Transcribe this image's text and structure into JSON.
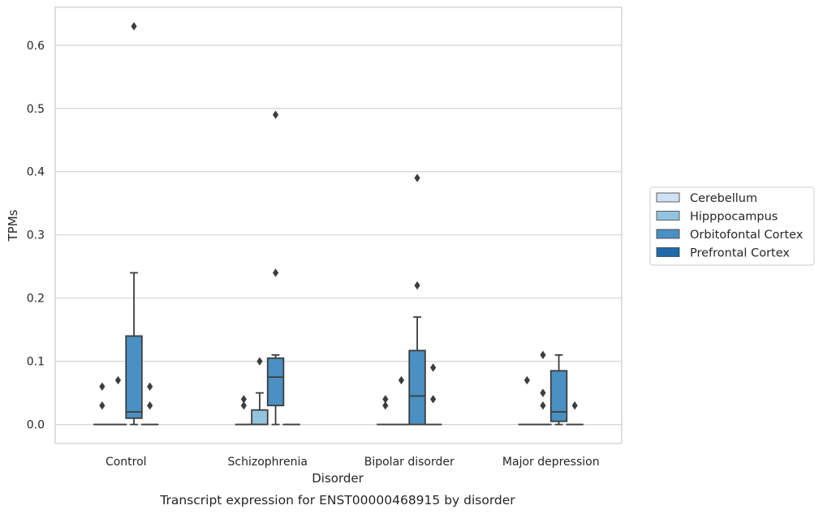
{
  "chart_data": {
    "type": "box",
    "title": "",
    "caption": "Transcript expression for ENST00000468915 by disorder",
    "xlabel": "Disorder",
    "ylabel": "TPMs",
    "ylim": [
      -0.03,
      0.66
    ],
    "yticks": [
      0.0,
      0.1,
      0.2,
      0.3,
      0.4,
      0.5,
      0.6
    ],
    "ytick_labels": [
      "0.0",
      "0.1",
      "0.2",
      "0.3",
      "0.4",
      "0.5",
      "0.6"
    ],
    "grid": "horizontal",
    "legend_position": "right",
    "categories": [
      "Control",
      "Schizophrenia",
      "Bipolar disorder",
      "Major depression"
    ],
    "series": [
      {
        "name": "Cerebellum",
        "color": "#cfe1f2",
        "boxes": [
          {
            "q1": 0,
            "median": 0,
            "q3": 0,
            "whisker_low": 0,
            "whisker_high": 0,
            "outliers": [
              0.03,
              0.06
            ]
          },
          {
            "q1": 0,
            "median": 0,
            "q3": 0,
            "whisker_low": 0,
            "whisker_high": 0,
            "outliers": [
              0.03,
              0.04
            ]
          },
          {
            "q1": 0,
            "median": 0,
            "q3": 0,
            "whisker_low": 0,
            "whisker_high": 0,
            "outliers": [
              0.03,
              0.04
            ]
          },
          {
            "q1": 0,
            "median": 0,
            "q3": 0,
            "whisker_low": 0,
            "whisker_high": 0,
            "outliers": [
              0.07
            ]
          }
        ]
      },
      {
        "name": "Hipppocampus",
        "color": "#93c4de",
        "boxes": [
          {
            "q1": 0,
            "median": 0,
            "q3": 0,
            "whisker_low": 0,
            "whisker_high": 0,
            "outliers": [
              0.07
            ]
          },
          {
            "q1": 0,
            "median": 0,
            "q3": 0.023,
            "whisker_low": 0,
            "whisker_high": 0.05,
            "outliers": [
              0.1
            ]
          },
          {
            "q1": 0,
            "median": 0,
            "q3": 0,
            "whisker_low": 0,
            "whisker_high": 0,
            "outliers": [
              0.07
            ]
          },
          {
            "q1": 0,
            "median": 0,
            "q3": 0,
            "whisker_low": 0,
            "whisker_high": 0,
            "outliers": [
              0.03,
              0.05,
              0.11
            ]
          }
        ]
      },
      {
        "name": "Orbitofontal Cortex",
        "color": "#4a90c2",
        "boxes": [
          {
            "q1": 0.01,
            "median": 0.02,
            "q3": 0.14,
            "whisker_low": 0,
            "whisker_high": 0.24,
            "outliers": [
              0.63
            ]
          },
          {
            "q1": 0.03,
            "median": 0.075,
            "q3": 0.105,
            "whisker_low": 0,
            "whisker_high": 0.11,
            "outliers": [
              0.24,
              0.49
            ]
          },
          {
            "q1": 0,
            "median": 0.045,
            "q3": 0.117,
            "whisker_low": 0,
            "whisker_high": 0.17,
            "outliers": [
              0.22,
              0.39
            ]
          },
          {
            "q1": 0.005,
            "median": 0.02,
            "q3": 0.085,
            "whisker_low": 0,
            "whisker_high": 0.11,
            "outliers": []
          }
        ]
      },
      {
        "name": "Prefrontal Cortex",
        "color": "#1f6aab",
        "boxes": [
          {
            "q1": 0,
            "median": 0,
            "q3": 0,
            "whisker_low": 0,
            "whisker_high": 0,
            "outliers": [
              0.03,
              0.06
            ]
          },
          {
            "q1": 0,
            "median": 0,
            "q3": 0,
            "whisker_low": 0,
            "whisker_high": 0,
            "outliers": []
          },
          {
            "q1": 0,
            "median": 0,
            "q3": 0,
            "whisker_low": 0,
            "whisker_high": 0,
            "outliers": [
              0.04,
              0.09
            ]
          },
          {
            "q1": 0,
            "median": 0,
            "q3": 0,
            "whisker_low": 0,
            "whisker_high": 0,
            "outliers": [
              0.03
            ]
          }
        ]
      }
    ]
  },
  "colors": {
    "grid": "#d5d5d5",
    "frame": "#cccccc",
    "box_edge": "#3d3d3d",
    "outlier": "#3d3d3d"
  }
}
